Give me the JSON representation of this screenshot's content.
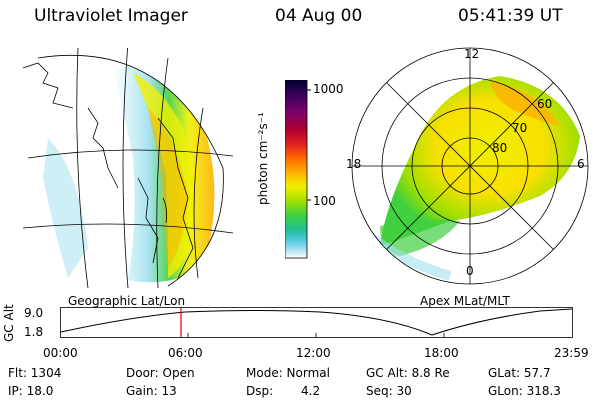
{
  "header": {
    "instrument": "Ultraviolet Imager",
    "date": "04 Aug 00",
    "time": "05:41:39 UT"
  },
  "left_panel": {
    "caption": "Geographic Lat/Lon"
  },
  "right_panel": {
    "caption": "Apex MLat/MLT",
    "mlt_labels": [
      "12",
      "18",
      "6",
      "0"
    ],
    "lat_labels": [
      "60",
      "70",
      "80"
    ]
  },
  "colorbar": {
    "ticks": [
      "1000",
      "100"
    ],
    "unit_label": "photon cm⁻²s⁻¹",
    "palette": [
      "#000033",
      "#3a005a",
      "#7a006a",
      "#b00030",
      "#e02020",
      "#ff6a00",
      "#ffb000",
      "#f0f000",
      "#a0e000",
      "#40d040",
      "#20c090",
      "#50c8e0",
      "#a0e0f0",
      "#ffffff"
    ]
  },
  "timeline": {
    "ylabel": "GC Alt",
    "ymax": "9.0",
    "ymin": "1.8",
    "xticks": [
      "00:00",
      "06:00",
      "12:00",
      "18:00",
      "23:59"
    ],
    "marker_time": "05:41",
    "marker_color": "#e00000"
  },
  "info": {
    "flt": "Flt: 1304",
    "ip": "IP: 18.0",
    "door": "Door: Open",
    "gain": "Gain: 13",
    "mode": "Mode: Normal",
    "dsp_label": "Dsp:",
    "dsp_value": "4.2",
    "gcalt": "GC Alt: 8.8 Re",
    "seq": "Seq: 30",
    "glat": "GLat: 57.7",
    "glon": "GLon: 318.3"
  }
}
